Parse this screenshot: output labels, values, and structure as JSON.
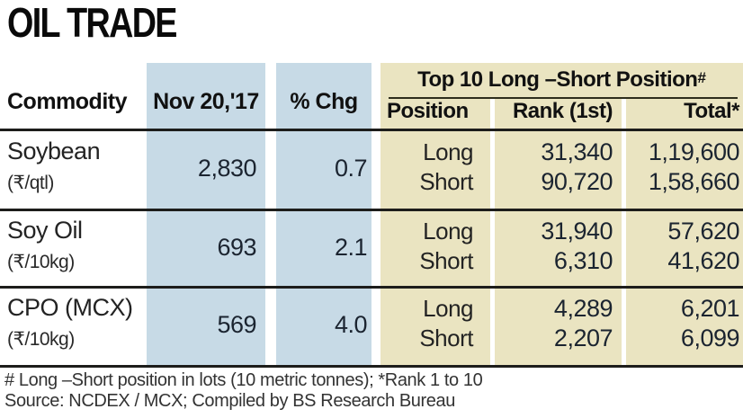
{
  "colors": {
    "column_blue": "#c7dae6",
    "column_tan": "#eae4c1",
    "rule_dark": "#1d1d1b"
  },
  "chart_data": {
    "type": "table",
    "title": "OIL TRADE",
    "columns": [
      "Commodity",
      "Nov 20,'17",
      "% Chg"
    ],
    "group_header": "Top 10 Long –Short Position",
    "group_header_suffix": "#",
    "sub_columns": [
      "Position",
      "Rank (1st)",
      "Total*"
    ],
    "rows": [
      {
        "name": "Soybean",
        "unit": "(₹/qtl)",
        "price": "2,830",
        "chg": "0.7",
        "positions": [
          "Long",
          "Short"
        ],
        "ranks": [
          "31,340",
          "90,720"
        ],
        "totals": [
          "1,19,600",
          "1,58,660"
        ]
      },
      {
        "name": "Soy Oil",
        "unit": "(₹/10kg)",
        "price": "693",
        "chg": "2.1",
        "positions": [
          "Long",
          "Short"
        ],
        "ranks": [
          "31,940",
          "6,310"
        ],
        "totals": [
          "57,620",
          "41,620"
        ]
      },
      {
        "name": "CPO (MCX)",
        "unit": "(₹/10kg)",
        "price": "569",
        "chg": "4.0",
        "positions": [
          "Long",
          "Short"
        ],
        "ranks": [
          "4,289",
          "2,207"
        ],
        "totals": [
          "6,201",
          "6,099"
        ]
      }
    ],
    "footnotes": [
      "# Long –Short position in lots (10 metric tonnes); *Rank 1 to 10",
      "Source: NCDEX / MCX; Compiled by BS Research Bureau"
    ]
  }
}
